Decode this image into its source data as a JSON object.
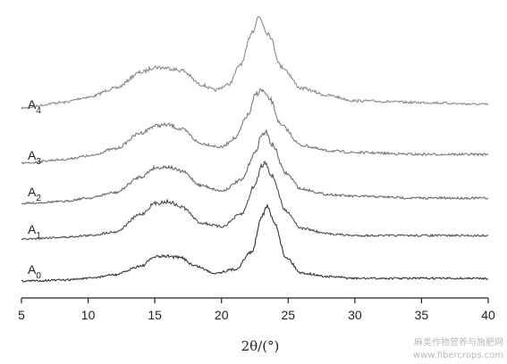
{
  "chart_data": {
    "type": "line",
    "title": "",
    "xlabel": "2θ/(°)",
    "ylabel": "",
    "xlim": [
      5,
      40
    ],
    "xticks": [
      "5",
      "10",
      "15",
      "20",
      "25",
      "30",
      "35",
      "40"
    ],
    "grid": false,
    "legend": "labels left of curves",
    "series": [
      {
        "name": "A",
        "sub": "4",
        "color": "#8a8a8a",
        "x": [
          5,
          8,
          10,
          12,
          14,
          15,
          15.8,
          17,
          18.5,
          19.5,
          20.5,
          21.5,
          22.3,
          22.8,
          23.5,
          24.5,
          26,
          28,
          30,
          35,
          40
        ],
        "y": [
          0.5,
          0.8,
          1.1,
          1.6,
          2.5,
          2.8,
          2.75,
          2.6,
          1.8,
          1.5,
          1.8,
          3.0,
          4.8,
          5.6,
          4.7,
          2.8,
          1.6,
          1.2,
          0.9,
          0.8,
          0.7
        ]
      },
      {
        "name": "A",
        "sub": "3",
        "color": "#7a7a7a",
        "x": [
          5,
          8,
          10,
          12,
          14,
          15,
          16,
          17,
          18.5,
          20,
          21,
          22,
          22.6,
          23,
          23.6,
          24.5,
          26,
          28,
          30,
          35,
          40
        ],
        "y": [
          0.3,
          0.5,
          0.7,
          1.1,
          2.0,
          2.4,
          2.45,
          2.2,
          1.4,
          1.2,
          1.7,
          3.0,
          4.2,
          4.4,
          3.9,
          2.4,
          1.3,
          1.0,
          0.9,
          0.8,
          0.8
        ]
      },
      {
        "name": "A",
        "sub": "2",
        "color": "#676767",
        "x": [
          5,
          8,
          10,
          12,
          14,
          15,
          16,
          17,
          18.5,
          20,
          21.5,
          22.5,
          23,
          23.3,
          23.8,
          24.8,
          26,
          28,
          30,
          35,
          40
        ],
        "y": [
          0.2,
          0.3,
          0.5,
          0.8,
          1.7,
          2.2,
          2.25,
          2.0,
          1.2,
          0.9,
          1.5,
          3.0,
          4.0,
          4.2,
          3.5,
          1.9,
          1.0,
          0.7,
          0.6,
          0.5,
          0.5
        ]
      },
      {
        "name": "A",
        "sub": "1",
        "color": "#4f4f4f",
        "x": [
          5,
          8,
          10,
          12,
          14,
          15,
          16,
          17,
          18.5,
          20,
          21.5,
          22.5,
          23,
          23.3,
          23.8,
          24.8,
          26,
          28,
          30,
          35,
          40
        ],
        "y": [
          0.2,
          0.3,
          0.4,
          0.6,
          1.6,
          2.2,
          2.3,
          2.0,
          1.1,
          0.9,
          1.6,
          3.2,
          4.3,
          4.5,
          3.7,
          1.8,
          0.8,
          0.5,
          0.4,
          0.4,
          0.4
        ]
      },
      {
        "name": "A",
        "sub": "0",
        "color": "#333333",
        "x": [
          5,
          8,
          10,
          12,
          14,
          15,
          16,
          17,
          18,
          19.5,
          21,
          22.3,
          23,
          23.4,
          24,
          24.8,
          26,
          28,
          30,
          35,
          40
        ],
        "y": [
          0.15,
          0.2,
          0.3,
          0.5,
          1.0,
          1.5,
          1.55,
          1.45,
          1.0,
          0.6,
          0.8,
          1.8,
          3.8,
          4.3,
          3.4,
          1.5,
          0.6,
          0.4,
          0.3,
          0.3,
          0.3
        ]
      }
    ]
  },
  "watermark": "麻类作物营养与施肥网",
  "watermark_url": "www.fibercrops.com"
}
